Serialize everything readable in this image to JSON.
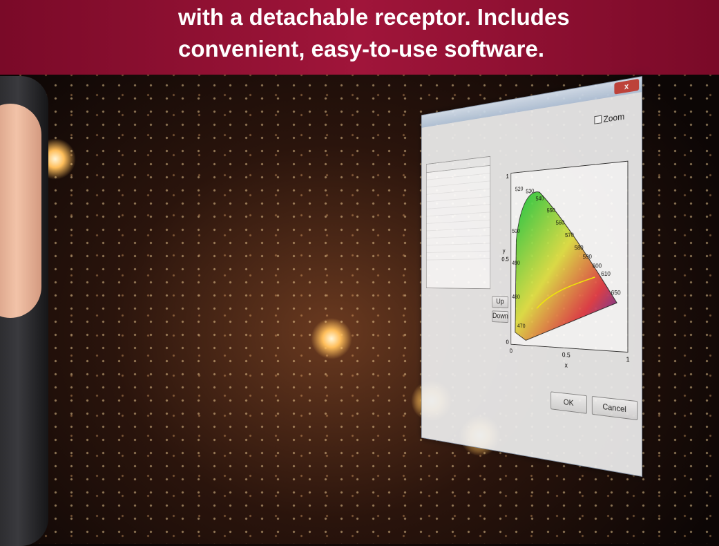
{
  "banner": {
    "lines": [
      "with a detachable receptor. Includes",
      "convenient, easy-to-use software."
    ]
  },
  "window": {
    "close": "x",
    "zoom": "Zoom",
    "buttons": {
      "up": "Up",
      "down": "Down",
      "ok": "OK",
      "cancel": "Cancel"
    },
    "plot": {
      "y_ticks": [
        "1",
        "0.5",
        "0"
      ],
      "x_ticks": [
        "0",
        "0.5",
        "1"
      ],
      "x_label": "x",
      "y_label": "y",
      "wavelengths": [
        "520",
        "530",
        "540",
        "550",
        "560",
        "570",
        "580",
        "590",
        "600",
        "610",
        "650",
        "500",
        "490",
        "480",
        "470"
      ]
    }
  }
}
